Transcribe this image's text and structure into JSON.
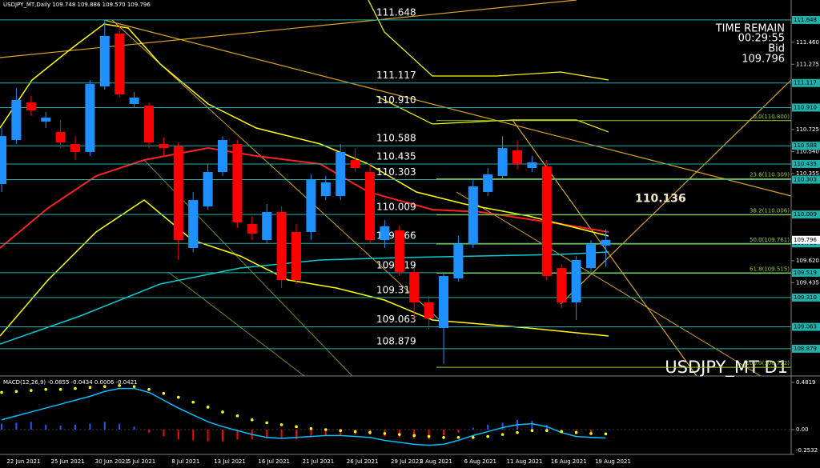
{
  "header": "USDJPY_MT,Daily  109.748 109.886 109.570 109.796",
  "chart_data": {
    "type": "candlestick",
    "title": "USDJPY_MT D1",
    "categories": [
      null,
      "22 Jun 2021",
      null,
      null,
      "25 Jun 2021",
      null,
      null,
      "30 Jun 2021",
      null,
      "5 Jul 2021",
      null,
      null,
      "8 Jul 2021",
      null,
      null,
      "13 Jul 2021",
      null,
      null,
      "16 Jul 2021",
      null,
      null,
      "21 Jul 2021",
      null,
      null,
      "26 Jul 2021",
      null,
      null,
      "29 Jul 2021",
      null,
      "3 Aug 2021",
      null,
      null,
      "6 Aug 2021",
      null,
      null,
      "11 Aug 2021",
      null,
      null,
      "16 Aug 2021",
      null,
      null,
      "19 Aug 2021"
    ],
    "open": [
      110.266,
      110.637,
      110.953,
      110.792,
      110.704,
      110.603,
      110.536,
      111.088,
      111.533,
      110.94,
      110.926,
      110.603,
      110.583,
      109.727,
      110.077,
      110.367,
      110.603,
      109.929,
      109.794,
      110.03,
      109.862,
      109.862,
      110.165,
      110.165,
      110.468,
      110.367,
      109.794,
      109.875,
      109.525,
      109.269,
      109.053,
      109.471,
      109.761,
      110.199,
      110.334,
      110.549,
      110.401,
      110.414,
      109.558,
      109.269,
      109.558,
      109.748
    ],
    "high": [
      110.738,
      111.075,
      111.007,
      110.873,
      110.805,
      110.67,
      111.142,
      111.648,
      111.614,
      111.041,
      110.953,
      110.657,
      110.616,
      110.199,
      110.434,
      110.67,
      110.637,
      109.996,
      110.098,
      110.077,
      109.929,
      110.347,
      110.334,
      110.603,
      110.569,
      110.434,
      109.963,
      109.916,
      109.558,
      109.323,
      109.525,
      109.828,
      110.3,
      110.401,
      110.67,
      110.637,
      110.502,
      110.468,
      109.591,
      109.659,
      109.794,
      109.886
    ],
    "low": [
      110.199,
      110.603,
      110.839,
      110.738,
      110.569,
      110.468,
      110.502,
      111.061,
      110.994,
      110.906,
      110.569,
      110.502,
      109.626,
      109.693,
      110.05,
      110.334,
      109.896,
      109.794,
      109.761,
      109.39,
      109.424,
      109.794,
      110.131,
      110.131,
      110.367,
      109.761,
      109.727,
      109.491,
      109.12,
      109.04,
      108.75,
      109.444,
      109.727,
      110.165,
      110.3,
      110.387,
      110.367,
      109.457,
      109.221,
      109.12,
      109.525,
      109.57
    ],
    "close": [
      110.67,
      110.974,
      110.886,
      110.825,
      110.616,
      110.536,
      111.108,
      111.513,
      111.021,
      110.994,
      110.616,
      110.569,
      109.794,
      110.131,
      110.367,
      110.637,
      109.943,
      109.848,
      110.03,
      109.457,
      109.457,
      110.3,
      110.28,
      110.536,
      110.401,
      109.794,
      109.909,
      109.525,
      109.269,
      109.134,
      109.491,
      109.761,
      110.246,
      110.347,
      110.569,
      110.435,
      110.448,
      109.491,
      109.269,
      109.626,
      109.761,
      109.796
    ],
    "up_color": "#1e90ff",
    "down_color": "#ff0000",
    "ylim": [
      108.649,
      111.816
    ],
    "yticks": [
      {
        "value": 111.46,
        "label": "111.460"
      },
      111.275,
      110.725,
      {
        "value": 110.54,
        "label": "110.540"
      },
      110.355,
      {
        "value": 109.62,
        "label": "109.620"
      },
      109.435
    ],
    "levels": [
      111.648,
      111.117,
      {
        "value": 110.91,
        "label": "110.910"
      },
      110.588,
      110.435,
      110.303,
      110.009,
      109.766,
      109.519,
      {
        "value": 109.31,
        "label": "109.310"
      },
      109.063,
      108.879
    ],
    "level_color": "#20b2aa",
    "fib_levels": [
      {
        "value": 110.8,
        "label": "0.0(110.800)"
      },
      {
        "value": 110.309,
        "label": "23.6(110.309)"
      },
      {
        "value": 110.006,
        "label": "38.2(110.006)"
      },
      {
        "value": 109.761,
        "label": "50.0(109.761)"
      },
      {
        "value": 109.515,
        "label": "61.8(109.515)"
      },
      {
        "value": 108.722,
        "label": "100.0(108.722)"
      }
    ],
    "fib_color": "#9acd32",
    "marker_price": 110.136,
    "time_remain_label": "TIME REMAIN",
    "time_remain": "00:29:55",
    "bid_label": "Bid",
    "bid": 109.796
  },
  "macd": {
    "type": "macd",
    "title": "MACD(12,26,9) -0.0855 -0.0434 0.0006 -0.0421",
    "ylim": [
      -0.2532,
      0.4819
    ],
    "yticks": [
      0.4819,
      {
        "value": 0,
        "label": "0.00"
      },
      -0.2532
    ],
    "main": [
      0.1,
      0.14,
      0.18,
      0.22,
      0.26,
      0.3,
      0.34,
      0.39,
      0.42,
      0.42,
      0.38,
      0.3,
      0.22,
      0.15,
      0.08,
      0.03,
      -0.01,
      -0.05,
      -0.08,
      -0.09,
      -0.08,
      -0.07,
      -0.06,
      -0.06,
      -0.07,
      -0.08,
      -0.11,
      -0.13,
      -0.15,
      -0.16,
      -0.15,
      -0.11,
      -0.06,
      -0.02,
      0.02,
      0.05,
      0.06,
      0.03,
      -0.03,
      -0.07,
      -0.08,
      -0.0855
    ],
    "signal": [
      0.38,
      0.39,
      0.4,
      0.41,
      0.41,
      0.42,
      0.43,
      0.44,
      0.45,
      0.44,
      0.41,
      0.37,
      0.33,
      0.28,
      0.23,
      0.18,
      0.14,
      0.1,
      0.07,
      0.05,
      0.03,
      0.01,
      0.0,
      -0.01,
      -0.02,
      -0.03,
      -0.04,
      -0.05,
      -0.06,
      -0.07,
      -0.08,
      -0.08,
      -0.08,
      -0.07,
      -0.05,
      -0.03,
      -0.01,
      -0.01,
      -0.02,
      -0.03,
      -0.04,
      -0.0434
    ],
    "histogram": [
      0.06,
      0.07,
      0.08,
      0.05,
      0.04,
      0.05,
      0.06,
      0.08,
      0.06,
      0.03,
      -0.03,
      -0.07,
      -0.1,
      -0.11,
      -0.12,
      -0.12,
      -0.1,
      -0.1,
      -0.09,
      -0.09,
      -0.1,
      -0.08,
      -0.06,
      -0.06,
      -0.05,
      -0.05,
      -0.07,
      -0.08,
      -0.09,
      -0.1,
      -0.06,
      -0.03,
      0.02,
      0.05,
      0.07,
      0.1,
      0.09,
      0.05,
      -0.01,
      -0.03,
      -0.04,
      0.0006
    ],
    "main_color": "#00bfff",
    "signal_color": "#ffff00",
    "histogram_up_color": "#1e5aff",
    "histogram_down_color": "#ff0000"
  }
}
